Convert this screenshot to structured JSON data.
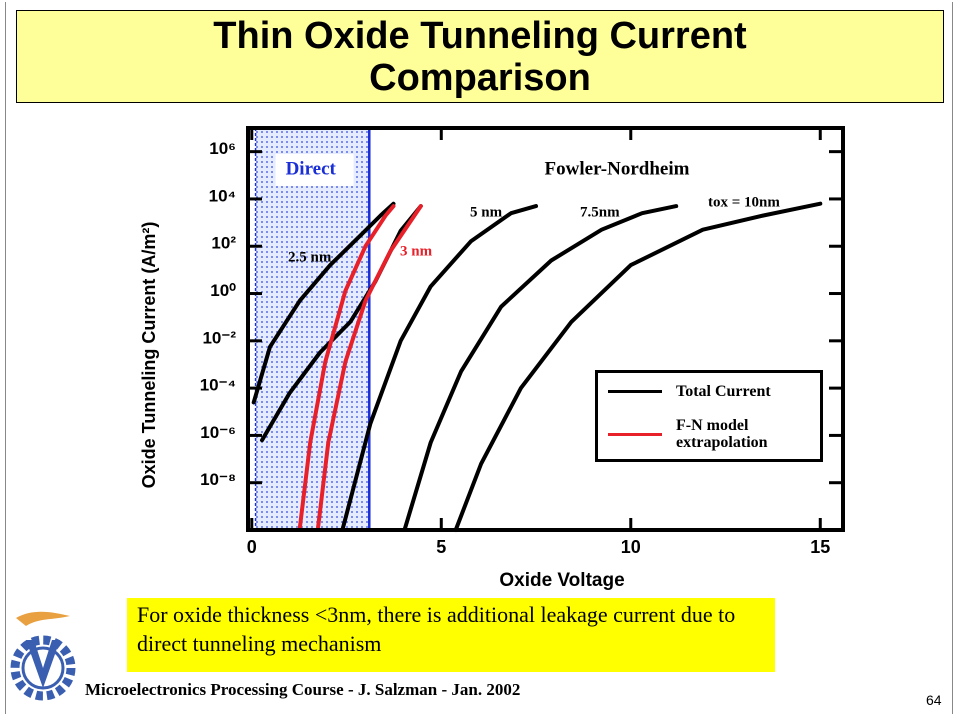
{
  "title": "Thin Oxide Tunneling Current Comparison",
  "chart_data": {
    "type": "line",
    "x_label": "Oxide Voltage",
    "y_label": "Oxide Tunneling Current  (A/m²)",
    "xlim": [
      -0.1,
      15.6
    ],
    "ylim": [
      1e-10,
      10000000.0
    ],
    "log_y": true,
    "xticks": [
      0,
      5,
      10,
      15
    ],
    "yticks": [
      {
        "value": 1e-08,
        "label": "10⁻⁸"
      },
      {
        "value": 1e-06,
        "label": "10⁻⁶"
      },
      {
        "value": 0.0001,
        "label": "10⁻⁴"
      },
      {
        "value": 0.01,
        "label": "10⁻²"
      },
      {
        "value": 1,
        "label": "10⁰"
      },
      {
        "value": 100,
        "label": "10²"
      },
      {
        "value": 10000,
        "label": "10⁴"
      },
      {
        "value": 1000000,
        "label": "10⁶"
      }
    ],
    "regions": [
      {
        "label": "Direct",
        "color": "#1a2fd6",
        "xlim": [
          0.1,
          3.1
        ]
      }
    ],
    "annotations": [
      "Fowler-Nordheim"
    ],
    "legend_position": "lower right",
    "series": [
      {
        "name": "Total Current",
        "color": "#000000",
        "curves": [
          {
            "label": "2.5 nm",
            "x": [
              0.05,
              0.48,
              1.27,
              2.07,
              2.86,
              3.4,
              3.74
            ],
            "values": [
              2.5e-05,
              0.0056,
              0.5,
              16,
              280,
              2000,
              6300
            ]
          },
          {
            "x": [
              0.27,
              1.0,
              1.8,
              2.6,
              3.26,
              3.93,
              4.46
            ],
            "values": [
              6.3e-07,
              6.3e-05,
              0.0032,
              0.063,
              3.2,
              450,
              5000
            ]
          },
          {
            "label": "5 nm",
            "x": [
              2.39,
              3.13,
              3.93,
              4.72,
              5.78,
              6.84,
              7.5
            ],
            "values": [
              1e-10,
              3.2e-06,
              0.01,
              2,
              160,
              2500,
              5000
            ]
          },
          {
            "label": "7.5nm",
            "x": [
              4.03,
              4.72,
              5.52,
              6.58,
              7.9,
              9.23,
              10.3,
              11.2
            ],
            "values": [
              1e-10,
              5e-07,
              0.0005,
              0.28,
              25,
              500,
              2500,
              5000
            ]
          },
          {
            "label": "tox = 10nm",
            "x": [
              5.38,
              6.05,
              7.1,
              8.43,
              10.0,
              11.9,
              13.5,
              15.0
            ],
            "values": [
              1e-10,
              6.3e-08,
              0.0001,
              0.063,
              16,
              500,
              2000,
              6300
            ]
          }
        ]
      },
      {
        "name": "F-N model extrapolation",
        "color": "#e8202a",
        "curves": [
          {
            "x": [
              1.27,
              1.54,
              1.94,
              2.47,
              3.0,
              3.53,
              3.74
            ],
            "values": [
              1.3e-10,
              5e-07,
              0.0013,
              1.3,
              100,
              2000,
              5000
            ]
          },
          {
            "label": "3 nm",
            "x": [
              1.75,
              2.02,
              2.47,
              3.0,
              3.66,
              4.46
            ],
            "values": [
              1.3e-10,
              5e-07,
              0.0013,
              0.5,
              63,
              5000
            ]
          }
        ]
      }
    ]
  },
  "note": "For oxide thickness <3nm, there is additional leakage current due to direct tunneling mechanism",
  "footer": "Microelectronics Processing Course - J. Salzman - Jan. 2002",
  "page_number": "64"
}
